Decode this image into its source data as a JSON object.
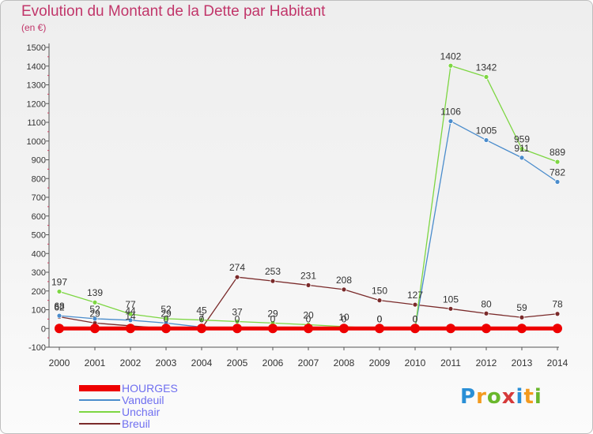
{
  "title": "Evolution du Montant de la Dette par Habitant",
  "unit_label": "(en €)",
  "logo": {
    "text": "Proxiti",
    "letter_colors": [
      "#2a8fd6",
      "#f39a1e",
      "#6ab72c",
      "#d63a3a",
      "#2a8fd6",
      "#f39a1e",
      "#6ab72c"
    ]
  },
  "chart_data": {
    "type": "line",
    "x": [
      2000,
      2001,
      2002,
      2003,
      2004,
      2005,
      2006,
      2007,
      2008,
      2009,
      2010,
      2011,
      2012,
      2013,
      2014
    ],
    "ylim": [
      -100,
      1500
    ],
    "yticks": [
      -100,
      0,
      100,
      200,
      300,
      400,
      500,
      600,
      700,
      800,
      900,
      1000,
      1100,
      1200,
      1300,
      1400,
      1500
    ],
    "grid": false,
    "legend_position": "bottom-left",
    "series": [
      {
        "name": "HOURGES",
        "color": "#ee0000",
        "values": [
          0,
          0,
          0,
          0,
          0,
          0,
          0,
          0,
          0,
          0,
          0,
          0,
          0,
          0,
          0
        ]
      },
      {
        "name": "Vandeuil",
        "color": "#4a8ccc",
        "values": [
          68,
          52,
          44,
          29,
          7,
          0,
          0,
          0,
          0,
          0,
          0,
          1106,
          1005,
          911,
          782
        ]
      },
      {
        "name": "Unchair",
        "color": "#7dd642",
        "values": [
          197,
          139,
          77,
          52,
          45,
          37,
          29,
          20,
          10,
          0,
          0,
          1402,
          1342,
          959,
          889
        ]
      },
      {
        "name": "Breuil",
        "color": "#7a2a2a",
        "values": [
          62,
          29,
          14,
          0,
          0,
          274,
          253,
          231,
          208,
          150,
          127,
          105,
          80,
          59,
          78
        ]
      }
    ]
  }
}
